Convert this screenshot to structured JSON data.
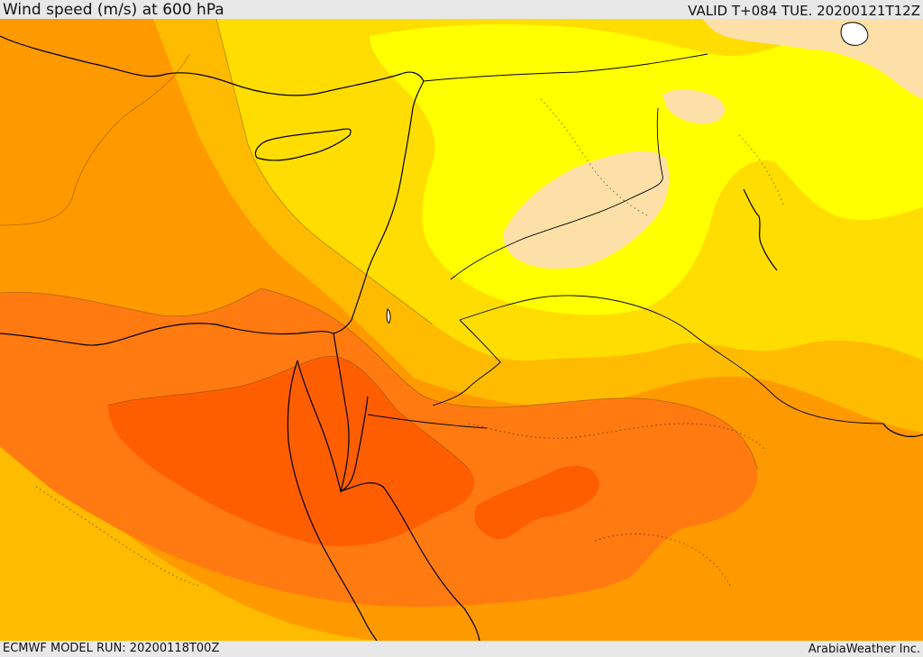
{
  "header": {
    "title": "Wind speed (m/s) at 600 hPa",
    "valid_time": "VALID T+084 TUE. 20200121T12Z"
  },
  "footer": {
    "model_run": "ECMWF MODEL RUN: 20200118T00Z",
    "credit": "ArabiaWeather Inc."
  },
  "colors": {
    "band_lt_10": "#fde0a8",
    "band_10_15": "#ffff00",
    "band_15_20": "#ffdd00",
    "band_20_25": "#ffbb00",
    "band_25_30": "#ff9900",
    "band_30_35": "#ff7a10",
    "band_gt_35": "#ff5e00",
    "coastline": "#000000",
    "water": "#ffffff"
  }
}
